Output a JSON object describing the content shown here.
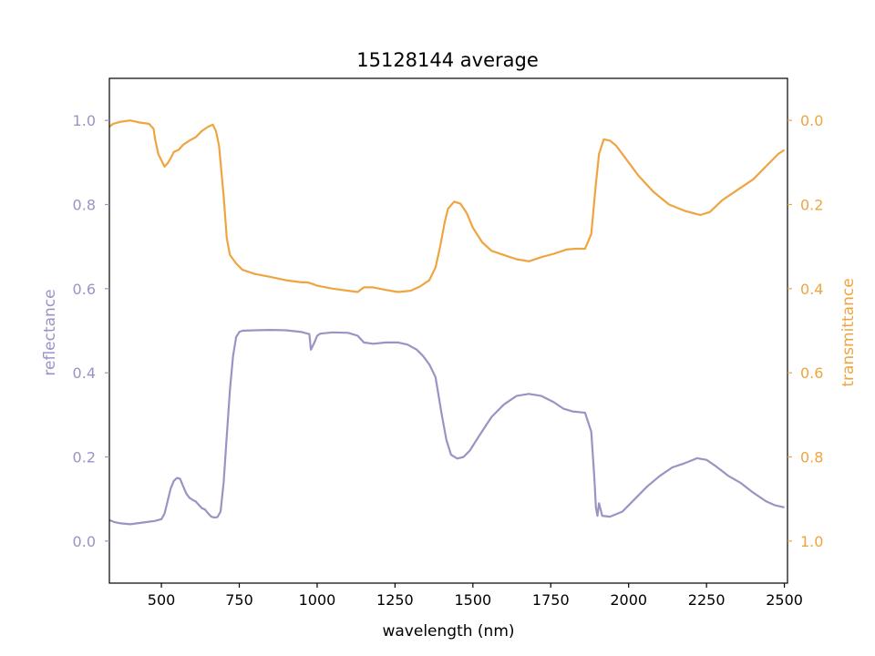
{
  "chart_data": {
    "type": "line",
    "title": "15128144 average",
    "xlabel": "wavelength (nm)",
    "ylabel_left": "reflectance",
    "ylabel_right": "transmittance",
    "xlim": [
      333,
      2510
    ],
    "ylim_left": [
      -0.1,
      1.1
    ],
    "ylim_right": [
      1.1,
      -0.1
    ],
    "right_axis_inverted": true,
    "grid": false,
    "x_ticks": [
      500,
      750,
      1000,
      1250,
      1500,
      1750,
      2000,
      2250,
      2500
    ],
    "x_tick_labels": [
      "500",
      "750",
      "1000",
      "1250",
      "1500",
      "1750",
      "2000",
      "2250",
      "2500"
    ],
    "y_left_ticks": [
      0.0,
      0.2,
      0.4,
      0.6,
      0.8,
      1.0
    ],
    "y_left_tick_labels": [
      "0.0",
      "0.2",
      "0.4",
      "0.6",
      "0.8",
      "1.0"
    ],
    "y_right_ticks": [
      0.0,
      0.2,
      0.4,
      0.6,
      0.8,
      1.0
    ],
    "y_right_tick_labels": [
      "0.0",
      "0.2",
      "0.4",
      "0.6",
      "0.8",
      "1.0"
    ],
    "colors": {
      "reflectance": "#9a94c4",
      "transmittance": "#eea540",
      "axis": "#000000"
    },
    "series": [
      {
        "axis": "left",
        "color": "#9a94c4",
        "points": [
          [
            333,
            0.05
          ],
          [
            350,
            0.045
          ],
          [
            370,
            0.042
          ],
          [
            400,
            0.04
          ],
          [
            430,
            0.043
          ],
          [
            460,
            0.046
          ],
          [
            480,
            0.048
          ],
          [
            500,
            0.052
          ],
          [
            510,
            0.065
          ],
          [
            520,
            0.095
          ],
          [
            530,
            0.125
          ],
          [
            540,
            0.143
          ],
          [
            550,
            0.15
          ],
          [
            560,
            0.148
          ],
          [
            570,
            0.13
          ],
          [
            580,
            0.113
          ],
          [
            590,
            0.103
          ],
          [
            600,
            0.098
          ],
          [
            610,
            0.094
          ],
          [
            620,
            0.086
          ],
          [
            630,
            0.078
          ],
          [
            640,
            0.075
          ],
          [
            650,
            0.066
          ],
          [
            660,
            0.058
          ],
          [
            670,
            0.056
          ],
          [
            680,
            0.057
          ],
          [
            690,
            0.07
          ],
          [
            700,
            0.14
          ],
          [
            710,
            0.25
          ],
          [
            720,
            0.36
          ],
          [
            730,
            0.44
          ],
          [
            740,
            0.485
          ],
          [
            750,
            0.497
          ],
          [
            760,
            0.5
          ],
          [
            800,
            0.501
          ],
          [
            850,
            0.502
          ],
          [
            900,
            0.501
          ],
          [
            950,
            0.497
          ],
          [
            975,
            0.492
          ],
          [
            980,
            0.455
          ],
          [
            990,
            0.47
          ],
          [
            1000,
            0.488
          ],
          [
            1010,
            0.493
          ],
          [
            1050,
            0.496
          ],
          [
            1100,
            0.495
          ],
          [
            1130,
            0.488
          ],
          [
            1150,
            0.472
          ],
          [
            1180,
            0.469
          ],
          [
            1220,
            0.472
          ],
          [
            1260,
            0.472
          ],
          [
            1290,
            0.467
          ],
          [
            1320,
            0.455
          ],
          [
            1340,
            0.44
          ],
          [
            1360,
            0.42
          ],
          [
            1380,
            0.39
          ],
          [
            1400,
            0.3
          ],
          [
            1415,
            0.24
          ],
          [
            1430,
            0.205
          ],
          [
            1450,
            0.196
          ],
          [
            1470,
            0.2
          ],
          [
            1490,
            0.215
          ],
          [
            1520,
            0.25
          ],
          [
            1560,
            0.295
          ],
          [
            1600,
            0.325
          ],
          [
            1640,
            0.345
          ],
          [
            1680,
            0.35
          ],
          [
            1720,
            0.345
          ],
          [
            1760,
            0.33
          ],
          [
            1790,
            0.315
          ],
          [
            1820,
            0.308
          ],
          [
            1860,
            0.305
          ],
          [
            1880,
            0.26
          ],
          [
            1890,
            0.15
          ],
          [
            1895,
            0.08
          ],
          [
            1900,
            0.06
          ],
          [
            1905,
            0.09
          ],
          [
            1915,
            0.06
          ],
          [
            1940,
            0.058
          ],
          [
            1980,
            0.07
          ],
          [
            2020,
            0.1
          ],
          [
            2060,
            0.13
          ],
          [
            2100,
            0.155
          ],
          [
            2140,
            0.175
          ],
          [
            2180,
            0.185
          ],
          [
            2220,
            0.197
          ],
          [
            2250,
            0.193
          ],
          [
            2280,
            0.178
          ],
          [
            2320,
            0.155
          ],
          [
            2360,
            0.138
          ],
          [
            2400,
            0.115
          ],
          [
            2440,
            0.095
          ],
          [
            2470,
            0.085
          ],
          [
            2500,
            0.08
          ]
        ]
      },
      {
        "axis": "right",
        "color": "#eea540",
        "points": [
          [
            333,
            0.015
          ],
          [
            345,
            0.008
          ],
          [
            370,
            0.003
          ],
          [
            400,
            0.0
          ],
          [
            430,
            0.005
          ],
          [
            460,
            0.008
          ],
          [
            475,
            0.02
          ],
          [
            480,
            0.045
          ],
          [
            490,
            0.08
          ],
          [
            500,
            0.095
          ],
          [
            510,
            0.11
          ],
          [
            520,
            0.102
          ],
          [
            530,
            0.09
          ],
          [
            540,
            0.075
          ],
          [
            555,
            0.07
          ],
          [
            570,
            0.058
          ],
          [
            590,
            0.048
          ],
          [
            610,
            0.04
          ],
          [
            630,
            0.025
          ],
          [
            650,
            0.015
          ],
          [
            665,
            0.01
          ],
          [
            675,
            0.025
          ],
          [
            685,
            0.06
          ],
          [
            700,
            0.18
          ],
          [
            710,
            0.28
          ],
          [
            720,
            0.32
          ],
          [
            740,
            0.34
          ],
          [
            760,
            0.355
          ],
          [
            800,
            0.365
          ],
          [
            850,
            0.372
          ],
          [
            900,
            0.38
          ],
          [
            950,
            0.385
          ],
          [
            970,
            0.385
          ],
          [
            990,
            0.39
          ],
          [
            1000,
            0.393
          ],
          [
            1050,
            0.4
          ],
          [
            1100,
            0.405
          ],
          [
            1130,
            0.408
          ],
          [
            1150,
            0.397
          ],
          [
            1180,
            0.397
          ],
          [
            1220,
            0.403
          ],
          [
            1260,
            0.408
          ],
          [
            1300,
            0.405
          ],
          [
            1330,
            0.395
          ],
          [
            1360,
            0.38
          ],
          [
            1380,
            0.35
          ],
          [
            1395,
            0.3
          ],
          [
            1410,
            0.24
          ],
          [
            1420,
            0.21
          ],
          [
            1440,
            0.193
          ],
          [
            1460,
            0.198
          ],
          [
            1480,
            0.22
          ],
          [
            1500,
            0.255
          ],
          [
            1530,
            0.29
          ],
          [
            1560,
            0.31
          ],
          [
            1600,
            0.32
          ],
          [
            1640,
            0.33
          ],
          [
            1680,
            0.335
          ],
          [
            1720,
            0.325
          ],
          [
            1760,
            0.317
          ],
          [
            1800,
            0.307
          ],
          [
            1830,
            0.305
          ],
          [
            1860,
            0.305
          ],
          [
            1880,
            0.27
          ],
          [
            1895,
            0.15
          ],
          [
            1905,
            0.08
          ],
          [
            1920,
            0.045
          ],
          [
            1940,
            0.048
          ],
          [
            1960,
            0.06
          ],
          [
            1990,
            0.09
          ],
          [
            2030,
            0.13
          ],
          [
            2080,
            0.17
          ],
          [
            2130,
            0.2
          ],
          [
            2180,
            0.215
          ],
          [
            2230,
            0.225
          ],
          [
            2260,
            0.218
          ],
          [
            2300,
            0.19
          ],
          [
            2350,
            0.165
          ],
          [
            2400,
            0.14
          ],
          [
            2440,
            0.11
          ],
          [
            2480,
            0.08
          ],
          [
            2500,
            0.07
          ]
        ]
      }
    ]
  }
}
